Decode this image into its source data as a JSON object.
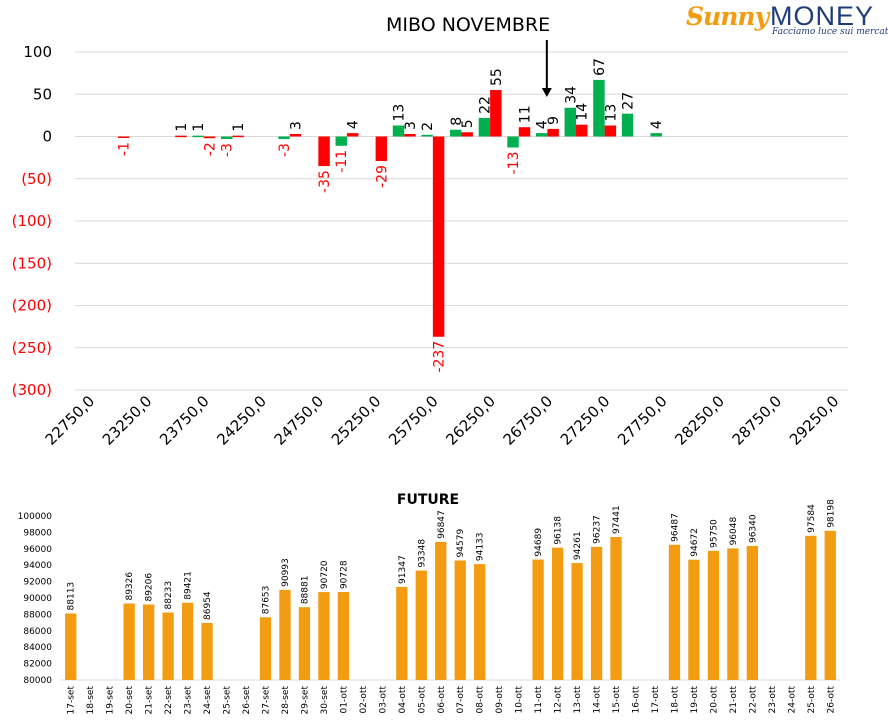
{
  "brand": {
    "name_part1": "Sunny",
    "name_part2": "MONEY",
    "tagline": "Facciamo luce sui mercati"
  },
  "annotation": {
    "text": "MIBO NOVEMBRE",
    "strike": 26850
  },
  "colors": {
    "positive": "#00b050",
    "negative": "#ff0000",
    "future": "#f39c12",
    "grid": "#d9d9d9"
  },
  "chart_data": [
    {
      "type": "bar",
      "xlabel": "",
      "ylabel": "",
      "ylim": [
        -300,
        100
      ],
      "yticks": [
        {
          "value": 100,
          "label": "100"
        },
        {
          "value": 50,
          "label": "50"
        },
        {
          "value": 0,
          "label": "0"
        },
        {
          "value": -50,
          "label": "(50)"
        },
        {
          "value": -100,
          "label": "(100)"
        },
        {
          "value": -150,
          "label": "(150)"
        },
        {
          "value": -200,
          "label": "(200)"
        },
        {
          "value": -250,
          "label": "(250)"
        },
        {
          "value": -300,
          "label": "(300)"
        }
      ],
      "xrange": [
        22750,
        29250
      ],
      "xticks": [
        "22750,0",
        "23250,0",
        "23750,0",
        "24250,0",
        "24750,0",
        "25250,0",
        "25750,0",
        "26250,0",
        "26750,0",
        "27250,0",
        "27750,0",
        "28250,0",
        "28750,0",
        "29250,0"
      ],
      "bars": [
        {
          "strike": 23000,
          "call": null,
          "put": -1
        },
        {
          "strike": 23500,
          "call": null,
          "put": 1
        },
        {
          "strike": 23750,
          "call": 1,
          "put": -2
        },
        {
          "strike": 24000,
          "call": -3,
          "put": 1
        },
        {
          "strike": 24500,
          "call": -3,
          "put": 3
        },
        {
          "strike": 24750,
          "call": null,
          "put": -35
        },
        {
          "strike": 25000,
          "call": -11,
          "put": 4
        },
        {
          "strike": 25250,
          "call": null,
          "put": -29
        },
        {
          "strike": 25500,
          "call": 13,
          "put": 3
        },
        {
          "strike": 25750,
          "call": 2,
          "put": -237
        },
        {
          "strike": 26000,
          "call": 8,
          "put": 5
        },
        {
          "strike": 26250,
          "call": 22,
          "put": 55
        },
        {
          "strike": 26500,
          "call": -13,
          "put": 11
        },
        {
          "strike": 26750,
          "call": 4,
          "put": 9
        },
        {
          "strike": 27000,
          "call": 34,
          "put": 14
        },
        {
          "strike": 27250,
          "call": 67,
          "put": 13
        },
        {
          "strike": 27500,
          "call": 27,
          "put": null
        },
        {
          "strike": 27750,
          "call": 4,
          "put": null
        }
      ]
    },
    {
      "type": "bar",
      "title": "FUTURE",
      "xlabel": "",
      "ylabel": "",
      "ylim": [
        80000,
        100000
      ],
      "yticks": [
        "80000",
        "82000",
        "84000",
        "86000",
        "88000",
        "90000",
        "92000",
        "94000",
        "96000",
        "98000",
        "100000"
      ],
      "categories": [
        "17-set",
        "18-set",
        "19-set",
        "20-set",
        "21-set",
        "22-set",
        "23-set",
        "24-set",
        "25-set",
        "26-set",
        "27-set",
        "28-set",
        "29-set",
        "30-set",
        "01-ott",
        "02-ott",
        "03-ott",
        "04-ott",
        "05-ott",
        "06-ott",
        "07-ott",
        "08-ott",
        "09-ott",
        "10-ott",
        "11-ott",
        "12-ott",
        "13-ott",
        "14-ott",
        "15-ott",
        "16-ott",
        "17-ott",
        "18-ott",
        "19-ott",
        "20-ott",
        "21-ott",
        "22-ott",
        "23-ott",
        "24-ott",
        "25-ott",
        "26-ott"
      ],
      "values": [
        88113,
        null,
        null,
        89326,
        89206,
        88233,
        89421,
        86954,
        null,
        null,
        87653,
        90993,
        88881,
        90720,
        90728,
        null,
        null,
        91347,
        93348,
        96847,
        94579,
        94133,
        null,
        null,
        94689,
        96138,
        94261,
        96237,
        97441,
        null,
        null,
        96487,
        94672,
        95750,
        96048,
        96340,
        null,
        null,
        97584,
        98198
      ]
    }
  ]
}
